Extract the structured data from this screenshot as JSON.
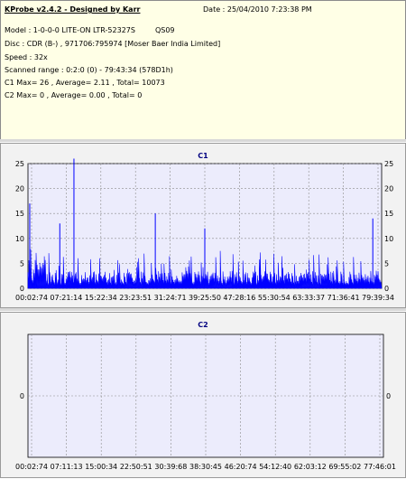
{
  "info": {
    "title": "KProbe v2.4.2 - Designed by Karr",
    "date_text": "Date : 25/04/2010 7:23:38 PM",
    "model": "Model : 1-0-0-0 LITE-ON LTR-52327S",
    "model_code": "QS09",
    "disc": "Disc : CDR (B-) , 971706:795974 [Moser Baer India Limited]",
    "speed": "Speed : 32x",
    "scanned_range": "Scanned range : 0:2:0 (0) - 79:43:34 (578D1h)",
    "c1_stats": "C1 Max= 26 , Average= 2.11 , Total= 10073",
    "c2_stats": "C2 Max= 0 , Average= 0.00 , Total= 0"
  },
  "colors": {
    "bar": "#0000ff",
    "plot_bg": "#ececfc",
    "grid": "#8c8c8c",
    "title": "#000080",
    "info_bg": "#ffffe6"
  },
  "chart_data": [
    {
      "type": "bar",
      "title": "C1",
      "ylim": [
        0,
        25
      ],
      "yticks": [
        0,
        5,
        10,
        15,
        20,
        25
      ],
      "xticks": [
        "00:02:74",
        "07:21:14",
        "15:22:34",
        "23:23:51",
        "31:24:71",
        "39:25:50",
        "47:28:16",
        "55:30:54",
        "63:33:37",
        "71:36:41",
        "79:39:34"
      ],
      "grid": true,
      "summary": {
        "max": 26,
        "average": 2.11,
        "total": 10073
      },
      "spikes": [
        {
          "position": 0.005,
          "value": 17
        },
        {
          "position": 0.13,
          "value": 26
        },
        {
          "position": 0.09,
          "value": 13
        },
        {
          "position": 0.36,
          "value": 15
        },
        {
          "position": 0.5,
          "value": 12
        },
        {
          "position": 0.975,
          "value": 14
        }
      ]
    },
    {
      "type": "bar",
      "title": "C2",
      "yticks": [
        0
      ],
      "xticks": [
        "00:02:74",
        "07:11:13",
        "15:00:34",
        "22:50:51",
        "30:39:68",
        "38:30:45",
        "46:20:74",
        "54:12:40",
        "62:03:12",
        "69:55:02",
        "77:46:01"
      ],
      "grid": true,
      "summary": {
        "max": 0,
        "average": 0.0,
        "total": 0
      }
    }
  ]
}
